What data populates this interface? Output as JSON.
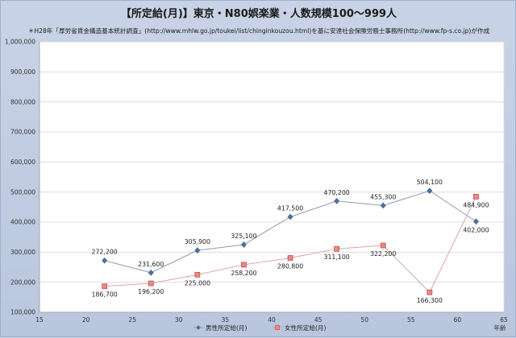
{
  "chart_data": {
    "type": "line",
    "title": "【所定給(月)】東京・N80娯楽業・人数規模100～999人",
    "subtitle": "＊H28年「厚労省賃金構造基本統計調査」(http://www.mhlw.go.jp/toukei/list/chinginkouzou.html)を基に安達社会保険労務士事務所(http://www.fp-s.co.jp)が作成",
    "xlabel": "年齢",
    "ylabel": "",
    "xlim": [
      15,
      65
    ],
    "ylim": [
      100000,
      1000000
    ],
    "x_ticks": [
      15,
      20,
      25,
      30,
      35,
      40,
      45,
      50,
      55,
      60,
      65
    ],
    "y_ticks": [
      100000,
      200000,
      300000,
      400000,
      500000,
      600000,
      700000,
      800000,
      900000,
      1000000
    ],
    "x_tick_labels": [
      "15",
      "20",
      "25",
      "30",
      "35",
      "40",
      "45",
      "50",
      "55",
      "60",
      "65"
    ],
    "y_tick_labels": [
      "100,000",
      "200,000",
      "300,000",
      "400,000",
      "500,000",
      "600,000",
      "700,000",
      "800,000",
      "900,000",
      "1,000,000"
    ],
    "grid": true,
    "legend_position": "bottom",
    "series": [
      {
        "name": "男性所定給(月)",
        "color": "#4f6f9f",
        "marker": "diamond",
        "x": [
          22,
          27,
          32,
          37,
          42,
          47,
          52,
          57,
          62
        ],
        "y": [
          272200,
          231600,
          305900,
          325100,
          417500,
          470200,
          455300,
          504100,
          402000
        ],
        "labels": [
          "272,200",
          "231,600",
          "305,900",
          "325,100",
          "417,500",
          "470,200",
          "455,300",
          "504,100",
          "402,000"
        ]
      },
      {
        "name": "女性所定給(月)",
        "color": "#d9655f",
        "marker": "square",
        "x": [
          22,
          27,
          32,
          37,
          42,
          47,
          52,
          57,
          62
        ],
        "y": [
          186700,
          196200,
          225000,
          258200,
          280800,
          311100,
          322200,
          166300,
          484900
        ],
        "labels": [
          "186,700",
          "196,200",
          "225,000",
          "258,200",
          "280,800",
          "311,100",
          "322,200",
          "166,300",
          "484,900"
        ]
      }
    ]
  }
}
